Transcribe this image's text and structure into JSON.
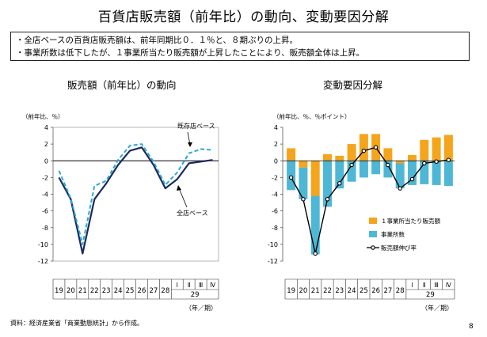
{
  "title": "百貨店販売額（前年比）の動向、変動要因分解",
  "summary": [
    "・全店ベースの百貨店販売額は、前年同期比０．１％と、８期ぶりの上昇。",
    "・事業所数は低下したが、１事業所当たり販売額が上昇したことにより、販売額全体は上昇。"
  ],
  "source": "資料：経済産業省「商業動態統計」から作成。",
  "page_number": "8",
  "chart_data": [
    {
      "type": "line",
      "title": "販売額（前年比）の動向",
      "unit_label": "（前年比、％）",
      "period_label": "（年／期）",
      "categories": [
        "19",
        "20",
        "21",
        "22",
        "23",
        "24",
        "25",
        "26",
        "27",
        "28",
        "Ⅰ",
        "Ⅱ",
        "Ⅲ",
        "Ⅳ"
      ],
      "year_label_29": "29",
      "ylim": [
        -12,
        4
      ],
      "yticks": [
        4,
        2,
        0,
        -2,
        -4,
        -6,
        -8,
        -10,
        -12
      ],
      "series": [
        {
          "name": "全店ベース",
          "style": "solid",
          "color": "#1b2a5e",
          "values": [
            -2.0,
            -4.6,
            -11.1,
            -4.6,
            -2.7,
            -0.5,
            1.2,
            1.6,
            -0.5,
            -3.3,
            -2.2,
            -0.3,
            -0.1,
            0.1
          ]
        },
        {
          "name": "既存店ベース",
          "style": "dashed",
          "color": "#29a9d6",
          "values": [
            -1.2,
            -4.5,
            -10.0,
            -3.0,
            -2.4,
            0.1,
            1.8,
            2.0,
            -0.1,
            -2.9,
            -1.4,
            0.9,
            1.4,
            1.3
          ]
        }
      ],
      "annotations": [
        "既存店ベース",
        "全店ベース"
      ]
    },
    {
      "type": "bar",
      "stacked": true,
      "title": "変動要因分解",
      "unit_label": "（前年比、％、％ポイント）",
      "period_label": "（年／期）",
      "categories": [
        "19",
        "20",
        "21",
        "22",
        "23",
        "24",
        "25",
        "26",
        "27",
        "28",
        "Ⅰ",
        "Ⅱ",
        "Ⅲ",
        "Ⅳ"
      ],
      "year_label_29": "29",
      "ylim": [
        -12,
        4
      ],
      "yticks": [
        4,
        2,
        0,
        -2,
        -4,
        -6,
        -8,
        -10,
        -12
      ],
      "series": [
        {
          "name": "１事業所当たり販売額",
          "color": "#f5a51c",
          "values": [
            1.5,
            -0.8,
            -4.2,
            0.8,
            0.6,
            2.0,
            3.2,
            3.2,
            1.5,
            -0.3,
            0.7,
            2.5,
            2.8,
            3.1
          ]
        },
        {
          "name": "事業所数",
          "color": "#4fb7d6",
          "values": [
            -3.5,
            -3.8,
            -7.0,
            -5.5,
            -3.3,
            -2.5,
            -2.0,
            -1.6,
            -2.0,
            -3.0,
            -2.9,
            -2.8,
            -2.9,
            -3.0
          ]
        },
        {
          "name": "販売額伸び率",
          "color": "#000000",
          "type": "line",
          "values": [
            -2.0,
            -4.6,
            -11.1,
            -4.6,
            -2.7,
            -0.5,
            1.2,
            1.6,
            -0.5,
            -3.3,
            -2.2,
            -0.3,
            -0.1,
            0.1
          ]
        }
      ]
    }
  ]
}
